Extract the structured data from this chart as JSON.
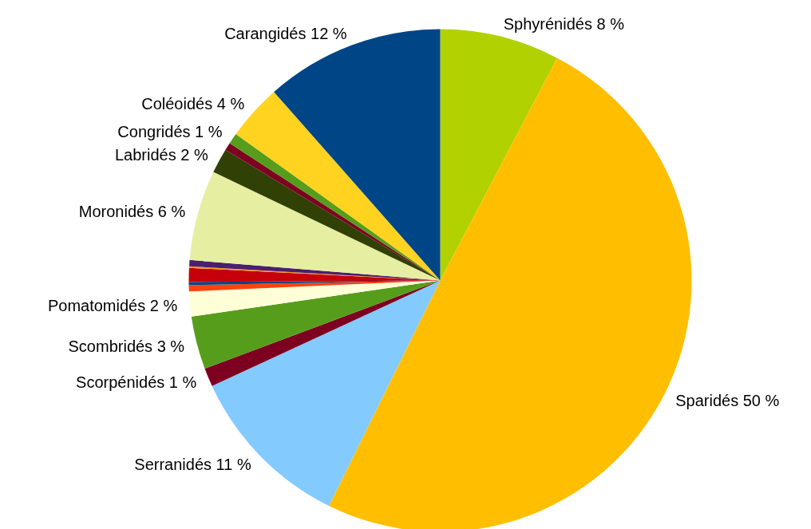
{
  "chart_data": {
    "type": "pie",
    "categories": [
      "Sphyrénidés",
      "Sparidés",
      "Serranidés",
      "Scorpénidés",
      "Scombridés",
      "Pomatomidés",
      null,
      null,
      null,
      null,
      null,
      "Moronidés",
      "Labridés",
      null,
      "Congridés",
      "Coléoidés",
      "Carangidés"
    ],
    "values": [
      7.7,
      49.6,
      10.8,
      1.2,
      3.4,
      1.6,
      0.4,
      0.2,
      0.9,
      0.1,
      0.4,
      5.8,
      1.6,
      0.5,
      0.7,
      3.6,
      11.5
    ],
    "value_labels": [
      "8 %",
      "50 %",
      "11 %",
      "1 %",
      "3 %",
      "2 %",
      null,
      null,
      null,
      null,
      null,
      "6 %",
      "2 %",
      null,
      "1 %",
      "4 %",
      "12 %"
    ],
    "colors": [
      "#b2d100",
      "#ffbf00",
      "#83caff",
      "#7e0021",
      "#579d1c",
      "#ffffd7",
      "#ff420e",
      "#004586",
      "#c5000b",
      "#ff950e",
      "#4b1f6f",
      "#e6eea2",
      "#314004",
      "#7e0021",
      "#579d1c",
      "#ffd320",
      "#004586"
    ]
  }
}
